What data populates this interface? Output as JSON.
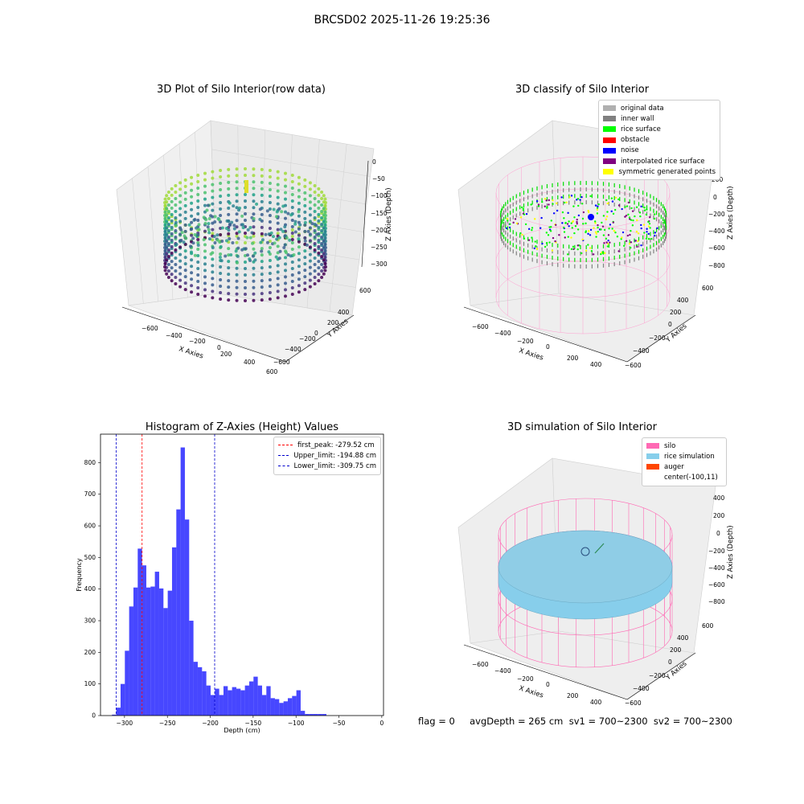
{
  "figure_title": "BRCSD02 2025-11-26 19:25:36",
  "status_line": "flag = 0     avgDepth = 265 cm  sv1 = 700~2300  sv2 = 700~2300",
  "panels": {
    "raw": {
      "title": "3D Plot of Silo Interior(row data)",
      "xlabel": "X Axies",
      "ylabel": "Y Axies",
      "zlabel": "Z Axies (Depth)",
      "x_ticks": [
        "−600",
        "−400",
        "−200",
        "0",
        "200",
        "400",
        "600"
      ],
      "y_ticks": [
        "600",
        "400",
        "200",
        "0",
        "−200",
        "−400",
        "−600"
      ],
      "z_ticks": [
        "0",
        "−50",
        "−100",
        "−150",
        "−200",
        "−250",
        "−300"
      ]
    },
    "classify": {
      "title": "3D classify of Silo Interior",
      "xlabel": "X Axies",
      "ylabel": "Y Axies",
      "zlabel": "Z Axies (Depth)",
      "x_ticks": [
        "−600",
        "−400",
        "−200",
        "0",
        "200",
        "400"
      ],
      "y_ticks": [
        "600",
        "400",
        "200",
        "0",
        "−200",
        "−400",
        "−600"
      ],
      "z_ticks": [
        "200",
        "0",
        "−200",
        "−400",
        "−600",
        "−800"
      ],
      "legend": [
        {
          "label": "original data",
          "color": "#b0b0b0"
        },
        {
          "label": "inner wall",
          "color": "#808080"
        },
        {
          "label": "rice surface",
          "color": "#00ff00"
        },
        {
          "label": "obstacle",
          "color": "#ff0000"
        },
        {
          "label": "noise",
          "color": "#0000ff"
        },
        {
          "label": "interpolated rice surface",
          "color": "#800080"
        },
        {
          "label": "symmetric generated points",
          "color": "#ffff00"
        }
      ]
    },
    "histogram": {
      "title": "Histogram of Z-Axies (Height) Values",
      "xlabel": "Depth (cm)",
      "ylabel": "Frequency",
      "legend": [
        {
          "label": "first_peak: -279.52 cm",
          "color": "#ff0000"
        },
        {
          "label": "Upper_limit: -194.88 cm",
          "color": "#0000cc"
        },
        {
          "label": "Lower_limit: -309.75 cm",
          "color": "#0000cc"
        }
      ]
    },
    "simulation": {
      "title": "3D simulation of Silo Interior",
      "xlabel": "X Axies",
      "ylabel": "Y Axies",
      "zlabel": "Z Axies (Depth)",
      "x_ticks": [
        "−600",
        "−400",
        "−200",
        "0",
        "200",
        "400"
      ],
      "y_ticks": [
        "600",
        "400",
        "200",
        "0",
        "−200",
        "−400",
        "−600"
      ],
      "z_ticks": [
        "400",
        "200",
        "0",
        "−200",
        "−400",
        "−600",
        "−800"
      ],
      "legend": [
        {
          "label": "silo",
          "color": "#ff69b4"
        },
        {
          "label": "rice simulation",
          "color": "#87ceeb"
        },
        {
          "label": "auger",
          "color": "#ff4500"
        },
        {
          "label": "center(-100,11)",
          "color": ""
        }
      ]
    }
  },
  "chart_data": [
    {
      "type": "scatter",
      "title": "3D Plot of Silo Interior(row data)",
      "xlabel": "X Axies",
      "ylabel": "Y Axies",
      "zlabel": "Z Axies (Depth)",
      "xlim": [
        -700,
        600
      ],
      "ylim": [
        -600,
        600
      ],
      "zlim": [
        -330,
        0
      ],
      "colormap": "viridis"
    },
    {
      "type": "scatter",
      "title": "3D classify of Silo Interior",
      "xlabel": "X Axies",
      "ylabel": "Y Axies",
      "zlabel": "Z Axies (Depth)",
      "xlim": [
        -700,
        500
      ],
      "ylim": [
        -600,
        600
      ],
      "zlim": [
        -900,
        300
      ],
      "series": [
        {
          "name": "original data",
          "color": "#b0b0b0"
        },
        {
          "name": "inner wall",
          "color": "#808080"
        },
        {
          "name": "rice surface",
          "color": "#00ff00"
        },
        {
          "name": "obstacle",
          "color": "#ff0000"
        },
        {
          "name": "noise",
          "color": "#0000ff"
        },
        {
          "name": "interpolated rice surface",
          "color": "#800080"
        },
        {
          "name": "symmetric generated points",
          "color": "#ffff00"
        }
      ]
    },
    {
      "type": "bar",
      "title": "Histogram of Z-Axies (Height) Values",
      "xlabel": "Depth (cm)",
      "ylabel": "Frequency",
      "xlim": [
        -328,
        2
      ],
      "ylim": [
        0,
        890
      ],
      "x_ticks": [
        -300,
        -250,
        -200,
        -150,
        -100,
        -50,
        0
      ],
      "y_ticks": [
        0,
        100,
        200,
        300,
        400,
        500,
        600,
        700,
        800
      ],
      "bar_color": "#0000ff",
      "bin_start": -314.6,
      "bin_width": 5,
      "values": [
        3,
        25,
        100,
        205,
        345,
        405,
        528,
        475,
        405,
        408,
        455,
        402,
        340,
        395,
        532,
        652,
        848,
        620,
        300,
        170,
        153,
        140,
        95,
        65,
        85,
        65,
        93,
        80,
        90,
        85,
        80,
        95,
        108,
        123,
        95,
        65,
        93,
        55,
        52,
        40,
        45,
        55,
        62,
        80,
        15,
        5,
        5,
        5,
        5,
        5
      ],
      "reference_lines": [
        {
          "name": "first_peak: -279.52 cm",
          "x": -279.52,
          "color": "#ff0000"
        },
        {
          "name": "Upper_limit: -194.88 cm",
          "x": -194.88,
          "color": "#0000cc"
        },
        {
          "name": "Lower_limit: -309.75 cm",
          "x": -309.75,
          "color": "#0000cc"
        }
      ],
      "legend_position": "upper right"
    },
    {
      "type": "scatter",
      "title": "3D simulation of Silo Interior",
      "xlabel": "X Axies",
      "ylabel": "Y Axies",
      "zlabel": "Z Axies (Depth)",
      "xlim": [
        -700,
        500
      ],
      "ylim": [
        -600,
        600
      ],
      "zlim": [
        -900,
        450
      ],
      "series": [
        {
          "name": "silo",
          "color": "#ff69b4"
        },
        {
          "name": "rice simulation",
          "color": "#87ceeb"
        },
        {
          "name": "auger",
          "color": "#ff4500"
        },
        {
          "name": "center(-100,11)"
        }
      ]
    }
  ]
}
